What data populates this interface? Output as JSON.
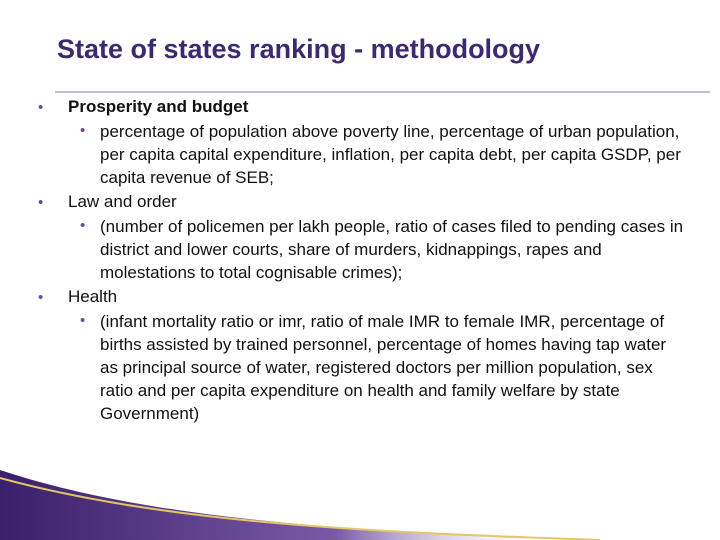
{
  "title": "State of states ranking - methodology",
  "items": [
    {
      "heading": "Prosperity and budget",
      "detail": "percentage of population above poverty line, percentage of urban population, per capita capital expenditure, inflation, per capita debt, per capita GSDP, per capita revenue of SEB;"
    },
    {
      "heading": "Law and order",
      "detail": "(number of policemen per lakh people, ratio of cases filed to pending cases in district and lower courts, share of murders, kidnappings, rapes and molestations to total cognisable crimes);"
    },
    {
      "heading": "Health",
      "detail": "(infant mortality ratio or imr, ratio of male IMR to female IMR, percentage of births assisted by trained personnel, percentage of homes having tap water as principal source of water, registered doctors per million population, sex ratio and per capita expenditure on health and family welfare by state Government)"
    }
  ]
}
